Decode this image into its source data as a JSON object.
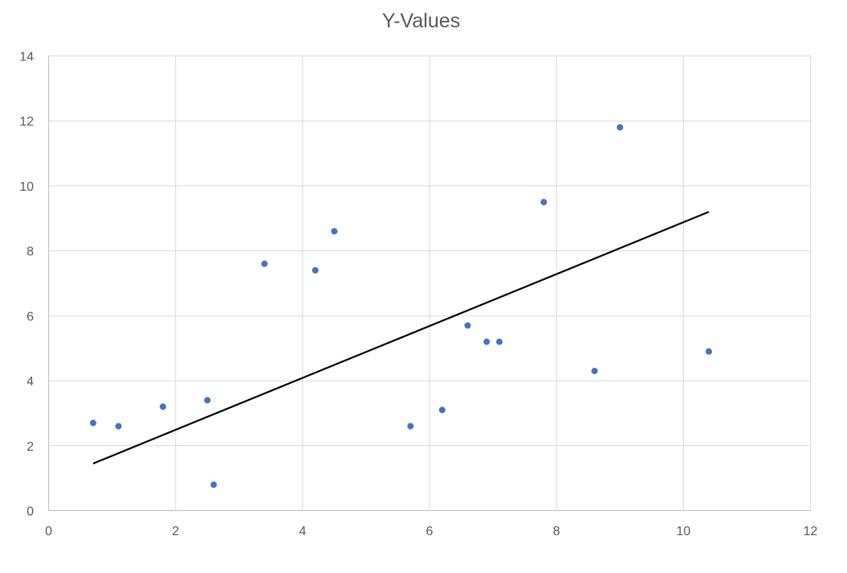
{
  "chart_data": {
    "type": "scatter",
    "title": "Y-Values",
    "xlabel": "",
    "ylabel": "",
    "xlim": [
      0,
      12
    ],
    "ylim": [
      0,
      14
    ],
    "x_ticks": [
      0,
      2,
      4,
      6,
      8,
      10,
      12
    ],
    "y_ticks": [
      0,
      2,
      4,
      6,
      8,
      10,
      12,
      14
    ],
    "grid": true,
    "legend": null,
    "series": [
      {
        "name": "Y-Values",
        "color": "#4472C4",
        "marker": "circle",
        "points": [
          {
            "x": 0.7,
            "y": 2.7
          },
          {
            "x": 1.1,
            "y": 2.6
          },
          {
            "x": 1.8,
            "y": 3.2
          },
          {
            "x": 2.5,
            "y": 3.4
          },
          {
            "x": 2.6,
            "y": 0.8
          },
          {
            "x": 3.4,
            "y": 7.6
          },
          {
            "x": 4.2,
            "y": 7.4
          },
          {
            "x": 4.5,
            "y": 8.6
          },
          {
            "x": 5.7,
            "y": 2.6
          },
          {
            "x": 6.2,
            "y": 3.1
          },
          {
            "x": 6.6,
            "y": 5.7
          },
          {
            "x": 6.9,
            "y": 5.2
          },
          {
            "x": 7.1,
            "y": 5.2
          },
          {
            "x": 7.8,
            "y": 9.5
          },
          {
            "x": 8.6,
            "y": 4.3
          },
          {
            "x": 9.0,
            "y": 11.8
          },
          {
            "x": 10.4,
            "y": 4.9
          }
        ]
      }
    ],
    "trendline": {
      "type": "linear",
      "color": "#000000",
      "x_start": 0.7,
      "y_start": 1.45,
      "x_end": 10.4,
      "y_end": 9.2
    }
  },
  "colors": {
    "marker": "#4472C4",
    "gridline": "#D9D9D9",
    "text": "#595959",
    "trendline": "#000000"
  }
}
